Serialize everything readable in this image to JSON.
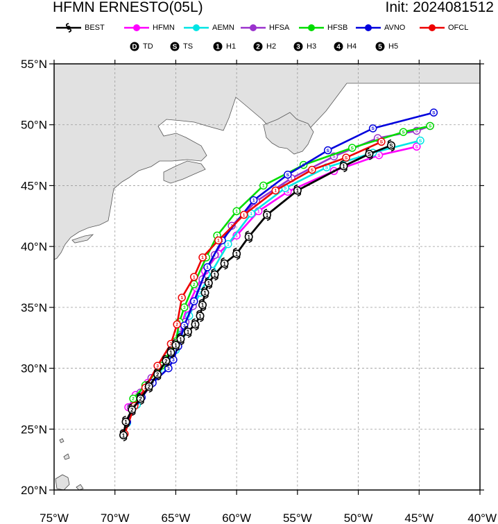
{
  "header": {
    "title": "HFMN ERNESTO(05L)",
    "init": "Init: 2024081512"
  },
  "legend": {
    "models": [
      {
        "label": "BEST",
        "color": "#000000",
        "icon": "hurricane-symbol"
      },
      {
        "label": "HFMN",
        "color": "#ff00ff"
      },
      {
        "label": "AEMN",
        "color": "#00e5e5"
      },
      {
        "label": "HFSA",
        "color": "#9a32cd"
      },
      {
        "label": "HFSB",
        "color": "#00dd00"
      },
      {
        "label": "AVNO",
        "color": "#0000dd"
      },
      {
        "label": "OFCL",
        "color": "#ee0000"
      }
    ],
    "intensity": [
      {
        "symbol": "D",
        "label": "TD"
      },
      {
        "symbol": "S",
        "label": "TS"
      },
      {
        "symbol": "1",
        "label": "H1"
      },
      {
        "symbol": "2",
        "label": "H2"
      },
      {
        "symbol": "3",
        "label": "H3"
      },
      {
        "symbol": "4",
        "label": "H4"
      },
      {
        "symbol": "5",
        "label": "H5"
      }
    ]
  },
  "map": {
    "projection": "cylindrical-equidistant",
    "lon_range": [
      -75,
      -40
    ],
    "lat_range": [
      20,
      55
    ],
    "grid": "dashed",
    "land_color": "#e1e1e1",
    "ocean_color": "#ffffff",
    "x_ticks": [
      "75°W",
      "70°W",
      "65°W",
      "60°W",
      "55°W",
      "50°W",
      "45°W",
      "40°W"
    ],
    "y_ticks": [
      "55°N",
      "50°N",
      "45°N",
      "40°N",
      "35°N",
      "30°N",
      "25°N",
      "20°N"
    ]
  },
  "chart_data": {
    "type": "line",
    "xlabel": "",
    "ylabel": "",
    "xlim": [
      -75,
      -40
    ],
    "ylim": [
      20,
      55
    ],
    "series": [
      {
        "name": "HFMN",
        "color": "#ff00ff",
        "points": [
          [
            -68.9,
            26.8
          ],
          [
            -68.3,
            27.8
          ],
          [
            -67.3,
            28.8
          ],
          [
            -66.0,
            30.2
          ],
          [
            -65.2,
            31.7
          ],
          [
            -64.6,
            33.3
          ],
          [
            -64.1,
            34.9
          ],
          [
            -63.3,
            36.6
          ],
          [
            -62.6,
            38.0
          ],
          [
            -61.5,
            39.4
          ],
          [
            -60.0,
            40.9
          ],
          [
            -58.2,
            42.9
          ],
          [
            -55.8,
            44.5
          ],
          [
            -52.0,
            46.2
          ],
          [
            -48.3,
            47.5
          ],
          [
            -45.2,
            48.2
          ]
        ],
        "symbols": [
          "2",
          "2",
          "2",
          "3",
          "3",
          "3",
          "3",
          "2",
          "1",
          "1",
          "1",
          "1",
          "S",
          "S",
          "S",
          "S"
        ]
      },
      {
        "name": "AEMN",
        "color": "#00e5e5",
        "points": [
          [
            -69.0,
            25.5
          ],
          [
            -68.2,
            27.0
          ],
          [
            -67.3,
            28.5
          ],
          [
            -66.2,
            29.8
          ],
          [
            -65.0,
            31.5
          ],
          [
            -64.5,
            32.8
          ],
          [
            -63.9,
            34.3
          ],
          [
            -63.0,
            36.2
          ],
          [
            -62.0,
            38.0
          ],
          [
            -60.7,
            40.2
          ],
          [
            -58.8,
            42.7
          ],
          [
            -56.0,
            44.8
          ],
          [
            -52.6,
            46.5
          ],
          [
            -48.8,
            47.7
          ],
          [
            -44.9,
            48.7
          ]
        ],
        "symbols": [
          "2",
          "2",
          "2",
          "3",
          "3",
          "3",
          "3",
          "2",
          "1",
          "1",
          "1",
          "S",
          "S",
          "S",
          "S"
        ]
      },
      {
        "name": "HFSA",
        "color": "#9a32cd",
        "points": [
          [
            -68.7,
            26.8
          ],
          [
            -67.9,
            28.0
          ],
          [
            -67.0,
            29.2
          ],
          [
            -66.0,
            30.5
          ],
          [
            -65.0,
            32.0
          ],
          [
            -64.2,
            33.8
          ],
          [
            -63.6,
            35.1
          ],
          [
            -62.8,
            37.3
          ],
          [
            -61.8,
            39.3
          ],
          [
            -60.4,
            41.7
          ],
          [
            -58.4,
            43.7
          ],
          [
            -55.5,
            45.6
          ],
          [
            -52.0,
            47.4
          ],
          [
            -48.4,
            48.9
          ],
          [
            -45.2,
            49.5
          ],
          [
            -44.1,
            49.9
          ]
        ],
        "symbols": [
          "2",
          "2",
          "2",
          "3",
          "3",
          "3",
          "2",
          "1",
          "1",
          "1",
          "1",
          "1",
          "S",
          "S",
          "S",
          "S"
        ]
      },
      {
        "name": "HFSB",
        "color": "#00dd00",
        "points": [
          [
            -68.5,
            27.5
          ],
          [
            -67.5,
            28.6
          ],
          [
            -66.2,
            30.2
          ],
          [
            -65.0,
            32.2
          ],
          [
            -64.7,
            33.8
          ],
          [
            -64.3,
            35.0
          ],
          [
            -63.5,
            36.9
          ],
          [
            -62.5,
            39.1
          ],
          [
            -61.6,
            40.9
          ],
          [
            -60.0,
            42.9
          ],
          [
            -57.8,
            45.0
          ],
          [
            -54.5,
            46.7
          ],
          [
            -50.5,
            48.1
          ],
          [
            -46.3,
            49.4
          ],
          [
            -44.1,
            49.9
          ]
        ],
        "symbols": [
          "2",
          "2",
          "3",
          "3",
          "3",
          "3",
          "2",
          "1",
          "1",
          "1",
          "1",
          "S",
          "S",
          "S",
          "S"
        ]
      },
      {
        "name": "AVNO",
        "color": "#0000dd",
        "points": [
          [
            -69.0,
            25.6
          ],
          [
            -67.8,
            27.6
          ],
          [
            -66.9,
            28.8
          ],
          [
            -65.6,
            30.0
          ],
          [
            -65.2,
            30.7
          ],
          [
            -64.8,
            31.8
          ],
          [
            -64.3,
            33.5
          ],
          [
            -63.5,
            35.5
          ],
          [
            -62.4,
            38.3
          ],
          [
            -61.2,
            40.5
          ],
          [
            -58.6,
            43.8
          ],
          [
            -55.8,
            45.9
          ],
          [
            -52.5,
            47.9
          ],
          [
            -48.8,
            49.7
          ],
          [
            -43.8,
            51.0
          ]
        ],
        "symbols": [
          "2",
          "2",
          "2",
          "3",
          "3",
          "3",
          "3",
          "2",
          "1",
          "1",
          "1",
          "S",
          "S",
          "S",
          "S"
        ]
      },
      {
        "name": "OFCL",
        "color": "#ee0000",
        "points": [
          [
            -69.2,
            24.6
          ],
          [
            -68.4,
            26.9
          ],
          [
            -67.5,
            28.4
          ],
          [
            -66.5,
            30.2
          ],
          [
            -65.4,
            32.0
          ],
          [
            -64.9,
            33.6
          ],
          [
            -64.5,
            35.8
          ],
          [
            -63.5,
            37.5
          ],
          [
            -62.8,
            39.1
          ],
          [
            -61.5,
            40.5
          ],
          [
            -59.4,
            42.6
          ],
          [
            -56.8,
            44.6
          ],
          [
            -53.8,
            46.3
          ],
          [
            -51.0,
            47.3
          ],
          [
            -48.1,
            48.6
          ]
        ],
        "symbols": [
          "1",
          "2",
          "2",
          "3",
          "3",
          "2",
          "1",
          "1",
          "1",
          "1",
          "1",
          "1",
          "S",
          "S",
          "S"
        ]
      },
      {
        "name": "BEST",
        "color": "#000000",
        "points": [
          [
            -69.3,
            24.5
          ],
          [
            -69.1,
            25.6
          ],
          [
            -68.6,
            26.6
          ],
          [
            -67.9,
            27.5
          ],
          [
            -67.2,
            28.5
          ],
          [
            -66.5,
            29.5
          ],
          [
            -65.8,
            30.6
          ],
          [
            -65.4,
            31.3
          ],
          [
            -65.0,
            31.9
          ],
          [
            -64.6,
            32.4
          ],
          [
            -64.0,
            33.0
          ],
          [
            -63.4,
            33.6
          ],
          [
            -63.0,
            34.3
          ],
          [
            -62.8,
            35.2
          ],
          [
            -62.6,
            36.2
          ],
          [
            -62.3,
            37.0
          ],
          [
            -61.8,
            37.7
          ],
          [
            -61.0,
            38.6
          ],
          [
            -60.0,
            39.4
          ],
          [
            -59.0,
            40.8
          ],
          [
            -57.5,
            42.6
          ],
          [
            -55.0,
            44.6
          ],
          [
            -51.2,
            46.6
          ],
          [
            -49.1,
            47.6
          ],
          [
            -47.3,
            48.3
          ]
        ],
        "symbols": [
          "1",
          "1",
          "2",
          "2",
          "2",
          "2",
          "2",
          "1",
          "1",
          "1",
          "1",
          "1",
          "1",
          "1",
          "1",
          "1",
          "1",
          "1",
          "1",
          "1",
          "1",
          "1",
          "1",
          "S",
          "S"
        ]
      }
    ]
  }
}
